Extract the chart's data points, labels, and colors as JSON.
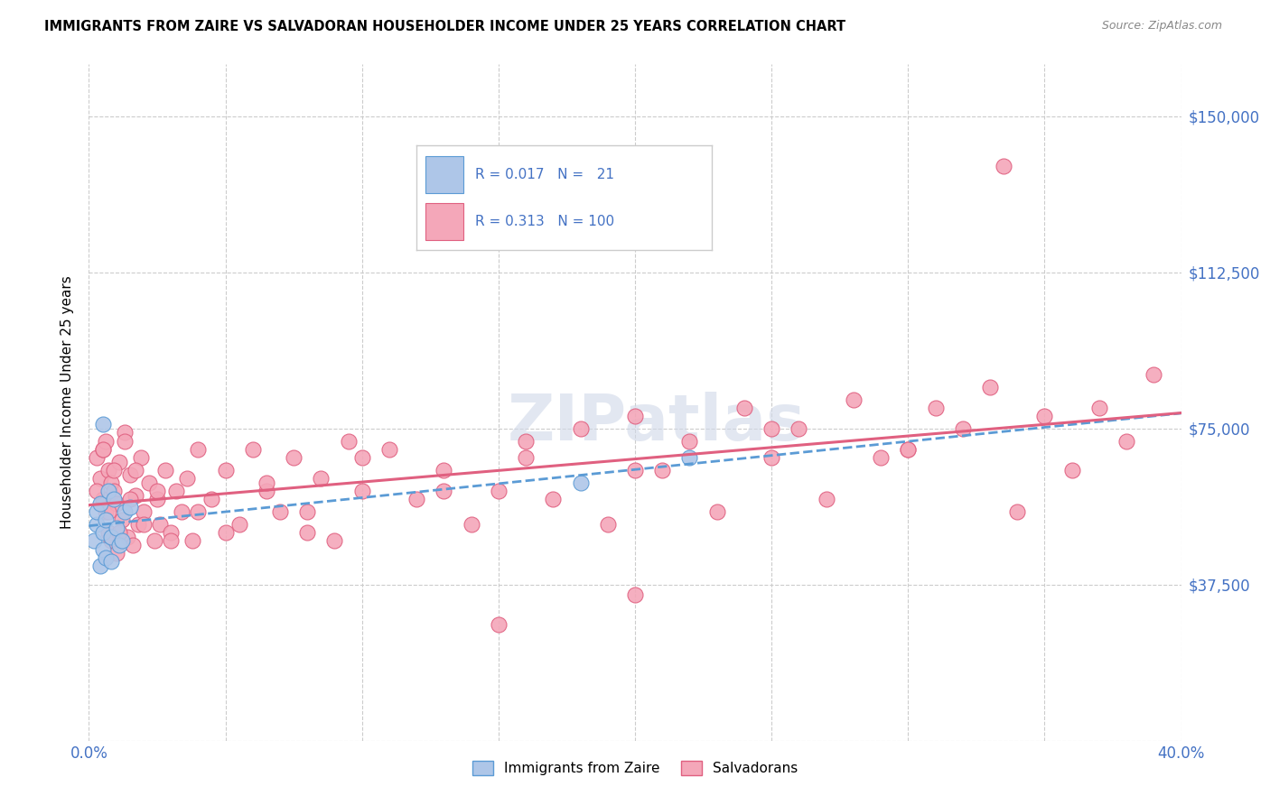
{
  "title": "IMMIGRANTS FROM ZAIRE VS SALVADORAN HOUSEHOLDER INCOME UNDER 25 YEARS CORRELATION CHART",
  "source": "Source: ZipAtlas.com",
  "ylabel": "Householder Income Under 25 years",
  "xlim": [
    0.0,
    0.4
  ],
  "ylim": [
    0,
    162500
  ],
  "xtick_positions": [
    0.0,
    0.05,
    0.1,
    0.15,
    0.2,
    0.25,
    0.3,
    0.35,
    0.4
  ],
  "ytick_positions": [
    0,
    37500,
    75000,
    112500,
    150000
  ],
  "color_zaire_fill": "#aec6e8",
  "color_zaire_edge": "#5b9bd5",
  "color_salvador_fill": "#f4a7b9",
  "color_salvador_edge": "#e06080",
  "color_zaire_line": "#5b9bd5",
  "color_salvador_line": "#e06080",
  "color_axis_label": "#4472c4",
  "watermark_color": "#d0d8e8",
  "legend_text_color": "#4472c4",
  "zaire_x": [
    0.002,
    0.003,
    0.003,
    0.004,
    0.004,
    0.005,
    0.005,
    0.006,
    0.006,
    0.007,
    0.008,
    0.008,
    0.009,
    0.01,
    0.011,
    0.012,
    0.013,
    0.015,
    0.005,
    0.18,
    0.22
  ],
  "zaire_y": [
    48000,
    52000,
    55000,
    42000,
    57000,
    50000,
    46000,
    53000,
    44000,
    60000,
    49000,
    43000,
    58000,
    51000,
    47000,
    48000,
    55000,
    56000,
    76000,
    62000,
    68000
  ],
  "salvador_x": [
    0.003,
    0.004,
    0.005,
    0.005,
    0.006,
    0.006,
    0.007,
    0.007,
    0.008,
    0.008,
    0.009,
    0.01,
    0.01,
    0.011,
    0.012,
    0.013,
    0.014,
    0.015,
    0.016,
    0.017,
    0.018,
    0.019,
    0.02,
    0.022,
    0.024,
    0.025,
    0.026,
    0.028,
    0.03,
    0.032,
    0.034,
    0.036,
    0.038,
    0.04,
    0.045,
    0.05,
    0.055,
    0.06,
    0.065,
    0.07,
    0.075,
    0.08,
    0.085,
    0.09,
    0.095,
    0.1,
    0.11,
    0.12,
    0.13,
    0.14,
    0.15,
    0.16,
    0.17,
    0.18,
    0.19,
    0.2,
    0.21,
    0.22,
    0.23,
    0.24,
    0.25,
    0.26,
    0.27,
    0.28,
    0.29,
    0.3,
    0.31,
    0.32,
    0.33,
    0.34,
    0.35,
    0.36,
    0.37,
    0.38,
    0.39,
    0.003,
    0.005,
    0.007,
    0.009,
    0.011,
    0.013,
    0.015,
    0.017,
    0.02,
    0.025,
    0.03,
    0.04,
    0.05,
    0.065,
    0.08,
    0.1,
    0.13,
    0.16,
    0.2,
    0.25,
    0.3,
    0.335,
    0.15,
    0.2
  ],
  "salvador_y": [
    68000,
    63000,
    58000,
    70000,
    55000,
    72000,
    50000,
    65000,
    62000,
    48000,
    60000,
    57000,
    45000,
    67000,
    53000,
    74000,
    49000,
    64000,
    47000,
    59000,
    52000,
    68000,
    55000,
    62000,
    48000,
    58000,
    52000,
    65000,
    50000,
    60000,
    55000,
    63000,
    48000,
    70000,
    58000,
    65000,
    52000,
    70000,
    60000,
    55000,
    68000,
    50000,
    63000,
    48000,
    72000,
    60000,
    70000,
    58000,
    65000,
    52000,
    60000,
    68000,
    58000,
    75000,
    52000,
    78000,
    65000,
    72000,
    55000,
    80000,
    68000,
    75000,
    58000,
    82000,
    68000,
    70000,
    80000,
    75000,
    85000,
    55000,
    78000,
    65000,
    80000,
    72000,
    88000,
    60000,
    70000,
    55000,
    65000,
    50000,
    72000,
    58000,
    65000,
    52000,
    60000,
    48000,
    55000,
    50000,
    62000,
    55000,
    68000,
    60000,
    72000,
    65000,
    75000,
    70000,
    138000,
    28000,
    35000
  ]
}
